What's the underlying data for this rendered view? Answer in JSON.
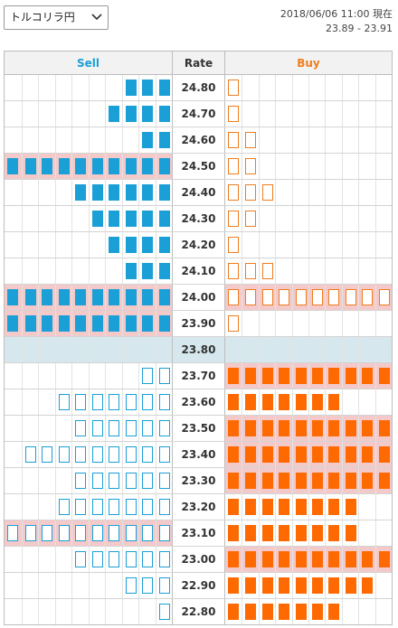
{
  "pair_select": {
    "value": "トルコリラ円"
  },
  "header_info": {
    "timestamp": "2018/06/06 11:00 現在",
    "quote": "23.89 - 23.91"
  },
  "columns": {
    "sell": "Sell",
    "rate": "Rate",
    "buy": "Buy"
  },
  "colors": {
    "sell": "#1a9fd6",
    "buy": "#ff6a00",
    "full_row": "#f4c9c9",
    "mid_row": "#d6e8ee"
  },
  "rows": [
    {
      "rate": "24.80",
      "sell": 3,
      "buy": 1
    },
    {
      "rate": "24.70",
      "sell": 4,
      "buy": 1
    },
    {
      "rate": "24.60",
      "sell": 2,
      "buy": 2
    },
    {
      "rate": "24.50",
      "sell": 10,
      "buy": 2
    },
    {
      "rate": "24.40",
      "sell": 6,
      "buy": 3
    },
    {
      "rate": "24.30",
      "sell": 5,
      "buy": 2
    },
    {
      "rate": "24.20",
      "sell": 4,
      "buy": 1
    },
    {
      "rate": "24.10",
      "sell": 3,
      "buy": 3
    },
    {
      "rate": "24.00",
      "sell": 10,
      "buy": 10
    },
    {
      "rate": "23.90",
      "sell": 10,
      "buy": 1
    },
    {
      "rate": "23.80",
      "sell": 0,
      "buy": 0
    },
    {
      "rate": "23.70",
      "sell": 2,
      "buy": 10
    },
    {
      "rate": "23.60",
      "sell": 7,
      "buy": 7
    },
    {
      "rate": "23.50",
      "sell": 6,
      "buy": 10
    },
    {
      "rate": "23.40",
      "sell": 9,
      "buy": 10
    },
    {
      "rate": "23.30",
      "sell": 6,
      "buy": 10
    },
    {
      "rate": "23.20",
      "sell": 7,
      "buy": 8
    },
    {
      "rate": "23.10",
      "sell": 10,
      "buy": 8
    },
    {
      "rate": "23.00",
      "sell": 6,
      "buy": 10
    },
    {
      "rate": "22.90",
      "sell": 3,
      "buy": 9
    },
    {
      "rate": "22.80",
      "sell": 1,
      "buy": 7
    }
  ],
  "mid_rate": "23.80",
  "filled_above_mid": "sell",
  "filled_below_mid": "buy"
}
